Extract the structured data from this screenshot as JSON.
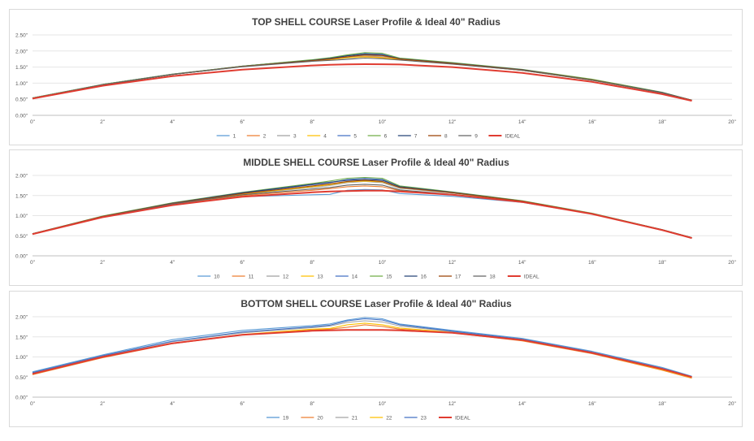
{
  "chart_data": [
    {
      "type": "line",
      "title": "TOP SHELL COURSE Laser Profile & Ideal 40\" Radius",
      "xlabel": "",
      "ylabel": "",
      "xlim": [
        0,
        20
      ],
      "ylim": [
        0,
        2.5
      ],
      "x_ticks": [
        "0\"",
        "2\"",
        "4\"",
        "6\"",
        "8\"",
        "10\"",
        "12\"",
        "14\"",
        "16\"",
        "18\"",
        "20\""
      ],
      "y_ticks": [
        "0.00\"",
        "0.50\"",
        "1.00\"",
        "1.50\"",
        "2.00\"",
        "2.50\""
      ],
      "grid": true,
      "legend_position": "bottom",
      "x": [
        0,
        2,
        4,
        6,
        8,
        8.5,
        9,
        9.5,
        10,
        10.5,
        12,
        14,
        16,
        18,
        18.85
      ],
      "ideal": {
        "name": "IDEAL",
        "color": "#e03c31",
        "values": [
          0.52,
          0.92,
          1.22,
          1.42,
          1.55,
          1.57,
          1.585,
          1.59,
          1.588,
          1.58,
          1.5,
          1.32,
          1.04,
          0.66,
          0.45
        ]
      },
      "series": [
        {
          "name": "1",
          "color": "#5b9bd5",
          "values": [
            0.53,
            0.95,
            1.27,
            1.52,
            1.7,
            1.74,
            1.78,
            1.82,
            1.8,
            1.74,
            1.6,
            1.4,
            1.09,
            0.7,
            0.47
          ]
        },
        {
          "name": "2",
          "color": "#ed7d31",
          "values": [
            0.53,
            0.95,
            1.27,
            1.52,
            1.71,
            1.75,
            1.8,
            1.84,
            1.81,
            1.75,
            1.61,
            1.4,
            1.1,
            0.7,
            0.47
          ]
        },
        {
          "name": "3",
          "color": "#a5a5a5",
          "values": [
            0.54,
            0.96,
            1.28,
            1.53,
            1.72,
            1.77,
            1.82,
            1.86,
            1.83,
            1.76,
            1.62,
            1.41,
            1.1,
            0.71,
            0.47
          ]
        },
        {
          "name": "4",
          "color": "#ffc000",
          "values": [
            0.53,
            0.95,
            1.27,
            1.52,
            1.7,
            1.73,
            1.79,
            1.82,
            1.79,
            1.74,
            1.6,
            1.4,
            1.09,
            0.7,
            0.47
          ]
        },
        {
          "name": "5",
          "color": "#4472c4",
          "values": [
            0.54,
            0.96,
            1.28,
            1.53,
            1.72,
            1.78,
            1.86,
            1.92,
            1.9,
            1.77,
            1.63,
            1.42,
            1.11,
            0.71,
            0.47
          ]
        },
        {
          "name": "6",
          "color": "#70ad47",
          "values": [
            0.54,
            0.96,
            1.28,
            1.53,
            1.73,
            1.79,
            1.88,
            1.95,
            1.93,
            1.78,
            1.64,
            1.43,
            1.12,
            0.72,
            0.47
          ]
        },
        {
          "name": "7",
          "color": "#264478",
          "values": [
            0.53,
            0.95,
            1.27,
            1.52,
            1.71,
            1.77,
            1.85,
            1.9,
            1.88,
            1.76,
            1.62,
            1.42,
            1.1,
            0.71,
            0.47
          ]
        },
        {
          "name": "8",
          "color": "#9e480e",
          "values": [
            0.53,
            0.95,
            1.27,
            1.52,
            1.7,
            1.75,
            1.82,
            1.88,
            1.86,
            1.75,
            1.61,
            1.41,
            1.1,
            0.7,
            0.47
          ]
        },
        {
          "name": "9",
          "color": "#636363",
          "values": [
            0.53,
            0.95,
            1.27,
            1.51,
            1.68,
            1.71,
            1.74,
            1.78,
            1.76,
            1.72,
            1.59,
            1.4,
            1.09,
            0.7,
            0.46
          ]
        }
      ]
    },
    {
      "type": "line",
      "title": "MIDDLE SHELL COURSE Laser Profile & Ideal 40\" Radius",
      "xlabel": "",
      "ylabel": "",
      "xlim": [
        0,
        20
      ],
      "ylim": [
        0,
        2.0
      ],
      "x_ticks": [
        "0\"",
        "2\"",
        "4\"",
        "6\"",
        "8\"",
        "10\"",
        "12\"",
        "14\"",
        "16\"",
        "18\"",
        "20\""
      ],
      "y_ticks": [
        "0.00\"",
        "0.50\"",
        "1.00\"",
        "1.50\"",
        "2.00\""
      ],
      "grid": true,
      "legend_position": "bottom",
      "x": [
        0,
        2,
        4,
        6,
        8,
        8.5,
        9,
        9.5,
        10,
        10.5,
        12,
        14,
        16,
        18,
        18.85
      ],
      "ideal": {
        "name": "IDEAL",
        "color": "#e03c31",
        "values": [
          0.54,
          0.96,
          1.26,
          1.47,
          1.58,
          1.6,
          1.61,
          1.62,
          1.62,
          1.6,
          1.52,
          1.34,
          1.04,
          0.64,
          0.44
        ]
      },
      "series": [
        {
          "name": "10",
          "color": "#5b9bd5",
          "values": [
            0.54,
            0.97,
            1.28,
            1.47,
            1.52,
            1.53,
            1.63,
            1.65,
            1.64,
            1.55,
            1.48,
            1.33,
            1.04,
            0.64,
            0.44
          ]
        },
        {
          "name": "11",
          "color": "#ed7d31",
          "values": [
            0.54,
            0.97,
            1.29,
            1.5,
            1.63,
            1.67,
            1.72,
            1.74,
            1.72,
            1.62,
            1.52,
            1.34,
            1.04,
            0.64,
            0.44
          ]
        },
        {
          "name": "12",
          "color": "#a5a5a5",
          "values": [
            0.55,
            0.98,
            1.3,
            1.53,
            1.7,
            1.75,
            1.82,
            1.85,
            1.82,
            1.68,
            1.56,
            1.35,
            1.05,
            0.65,
            0.45
          ]
        },
        {
          "name": "13",
          "color": "#ffc000",
          "values": [
            0.55,
            0.98,
            1.3,
            1.54,
            1.72,
            1.77,
            1.84,
            1.86,
            1.84,
            1.7,
            1.57,
            1.36,
            1.05,
            0.65,
            0.45
          ]
        },
        {
          "name": "14",
          "color": "#4472c4",
          "values": [
            0.55,
            0.98,
            1.31,
            1.56,
            1.77,
            1.82,
            1.9,
            1.93,
            1.9,
            1.72,
            1.58,
            1.36,
            1.05,
            0.65,
            0.45
          ]
        },
        {
          "name": "15",
          "color": "#70ad47",
          "values": [
            0.55,
            0.99,
            1.32,
            1.58,
            1.8,
            1.86,
            1.93,
            1.95,
            1.93,
            1.74,
            1.59,
            1.37,
            1.06,
            0.65,
            0.45
          ]
        },
        {
          "name": "16",
          "color": "#264478",
          "values": [
            0.55,
            0.98,
            1.31,
            1.57,
            1.78,
            1.83,
            1.88,
            1.9,
            1.88,
            1.72,
            1.58,
            1.36,
            1.05,
            0.65,
            0.45
          ]
        },
        {
          "name": "17",
          "color": "#9e480e",
          "values": [
            0.55,
            0.98,
            1.3,
            1.55,
            1.74,
            1.79,
            1.85,
            1.88,
            1.85,
            1.7,
            1.57,
            1.36,
            1.05,
            0.65,
            0.45
          ]
        },
        {
          "name": "18",
          "color": "#636363",
          "values": [
            0.54,
            0.97,
            1.29,
            1.52,
            1.66,
            1.7,
            1.76,
            1.78,
            1.76,
            1.64,
            1.53,
            1.34,
            1.04,
            0.64,
            0.44
          ]
        }
      ]
    },
    {
      "type": "line",
      "title": "BOTTOM SHELL COURSE Laser Profile & Ideal 40\" Radius",
      "xlabel": "",
      "ylabel": "",
      "xlim": [
        0,
        20
      ],
      "ylim": [
        0,
        2.0
      ],
      "x_ticks": [
        "0\"",
        "2\"",
        "4\"",
        "6\"",
        "8\"",
        "10\"",
        "12\"",
        "14\"",
        "16\"",
        "18\"",
        "20\""
      ],
      "y_ticks": [
        "0.00\"",
        "0.50\"",
        "1.00\"",
        "1.50\"",
        "2.00\""
      ],
      "grid": true,
      "legend_position": "bottom",
      "x": [
        0,
        2,
        4,
        6,
        8,
        8.5,
        9,
        9.5,
        10,
        10.5,
        12,
        14,
        16,
        18,
        18.85
      ],
      "ideal": {
        "name": "IDEAL",
        "color": "#e03c31",
        "values": [
          0.58,
          1.0,
          1.34,
          1.55,
          1.65,
          1.66,
          1.67,
          1.67,
          1.67,
          1.66,
          1.6,
          1.42,
          1.1,
          0.7,
          0.5
        ]
      },
      "series": [
        {
          "name": "19",
          "color": "#5b9bd5",
          "values": [
            0.63,
            1.05,
            1.43,
            1.66,
            1.78,
            1.82,
            1.92,
            1.98,
            1.95,
            1.82,
            1.66,
            1.46,
            1.14,
            0.74,
            0.52
          ]
        },
        {
          "name": "20",
          "color": "#ed7d31",
          "values": [
            0.56,
            0.98,
            1.33,
            1.55,
            1.67,
            1.69,
            1.74,
            1.8,
            1.76,
            1.69,
            1.6,
            1.4,
            1.08,
            0.67,
            0.47
          ]
        },
        {
          "name": "21",
          "color": "#a5a5a5",
          "values": [
            0.6,
            1.02,
            1.38,
            1.6,
            1.73,
            1.77,
            1.86,
            1.9,
            1.87,
            1.77,
            1.63,
            1.43,
            1.11,
            0.71,
            0.5
          ]
        },
        {
          "name": "22",
          "color": "#ffc000",
          "values": [
            0.57,
            0.99,
            1.34,
            1.56,
            1.69,
            1.71,
            1.8,
            1.84,
            1.8,
            1.72,
            1.61,
            1.41,
            1.09,
            0.68,
            0.48
          ]
        },
        {
          "name": "23",
          "color": "#4472c4",
          "values": [
            0.61,
            1.03,
            1.39,
            1.62,
            1.75,
            1.79,
            1.9,
            1.95,
            1.92,
            1.8,
            1.64,
            1.44,
            1.12,
            0.72,
            0.51
          ]
        }
      ]
    }
  ]
}
